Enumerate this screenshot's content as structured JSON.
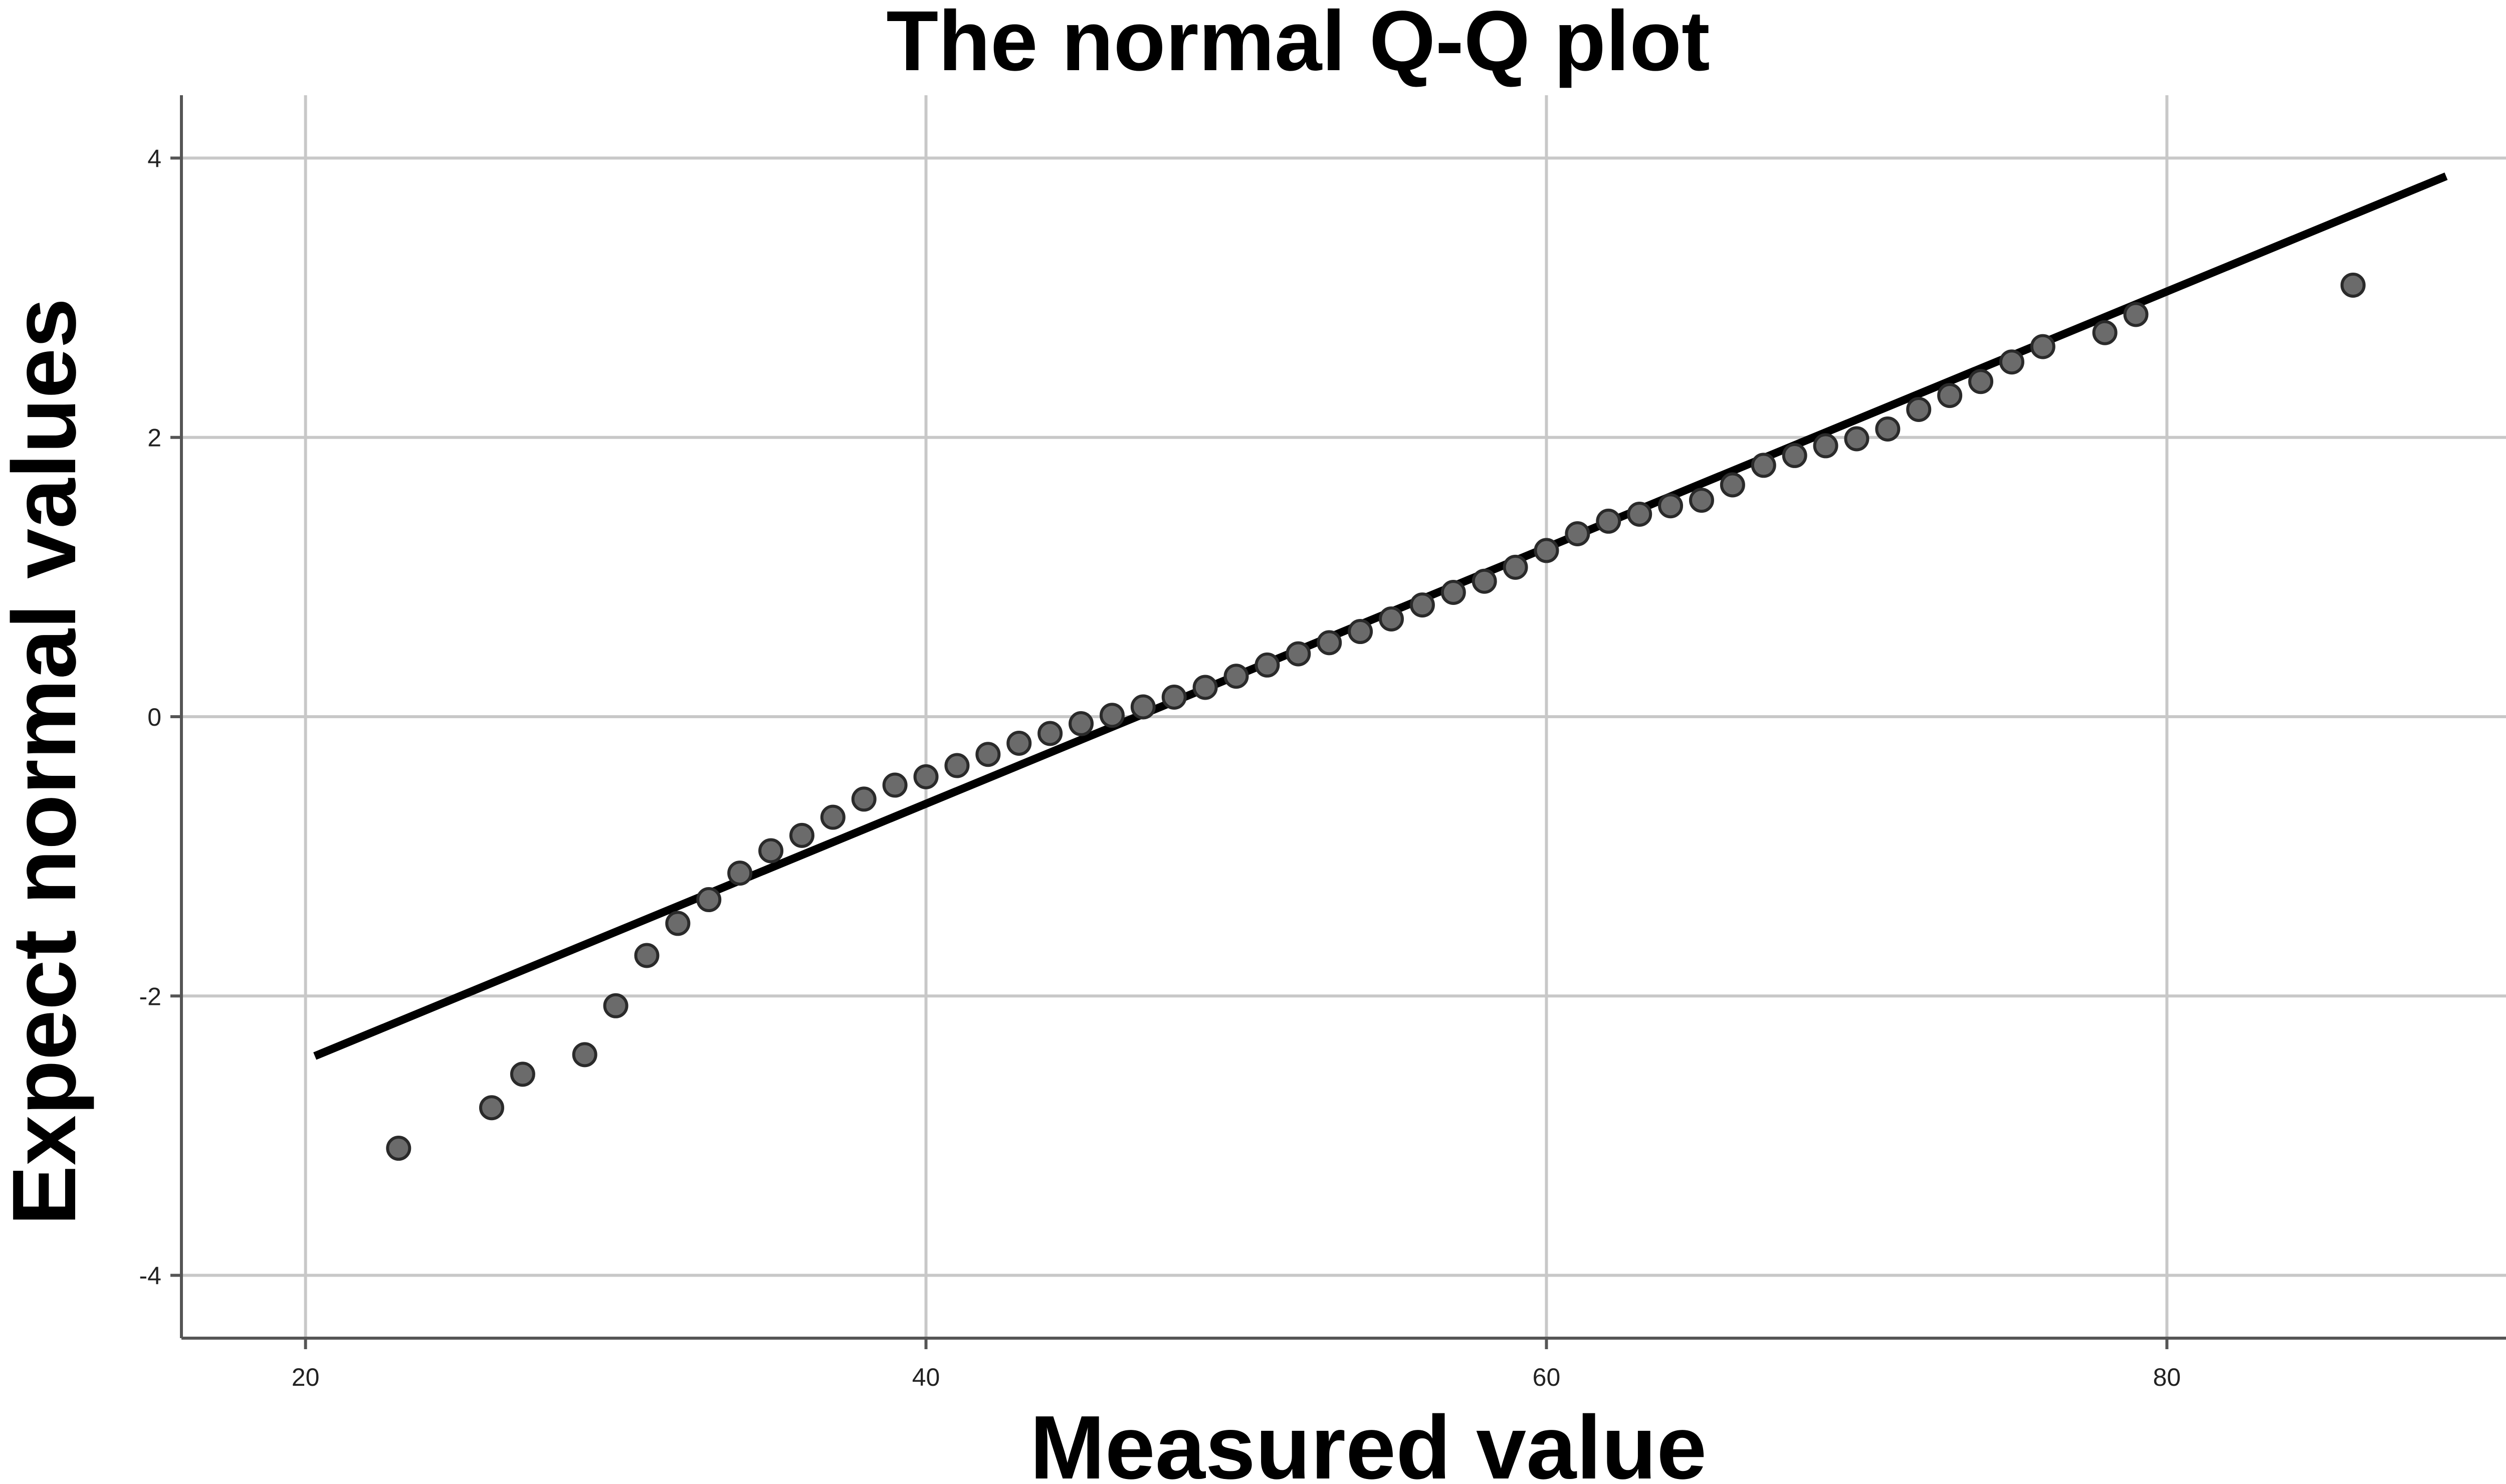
{
  "chart_data": {
    "type": "scatter",
    "title": "The normal Q-Q plot",
    "xlabel": "Measured value",
    "ylabel": "Expect normal values",
    "xlim": [
      16,
      94
    ],
    "ylim": [
      -4.45,
      4.45
    ],
    "xticks": [
      20,
      40,
      60,
      80
    ],
    "yticks": [
      4,
      2,
      0,
      -2,
      -4
    ],
    "grid": true,
    "reference_line": {
      "x": [
        20.3,
        89
      ],
      "y": [
        -2.43,
        3.87
      ]
    },
    "points": {
      "x": [
        23,
        26,
        27,
        29,
        30,
        31,
        32,
        33,
        34,
        35,
        36,
        37,
        38,
        39,
        40,
        41,
        42,
        43,
        44,
        45,
        46,
        47,
        48,
        49,
        50,
        51,
        52,
        53,
        54,
        55,
        56,
        57,
        58,
        59,
        60,
        61,
        62,
        63,
        64,
        65,
        66,
        67,
        68,
        69,
        70,
        71,
        72,
        73,
        74,
        75,
        76,
        78,
        79,
        86
      ],
      "y": [
        -3.09,
        -2.8,
        -2.56,
        -2.42,
        -2.07,
        -1.71,
        -1.48,
        -1.31,
        -1.12,
        -0.96,
        -0.85,
        -0.72,
        -0.59,
        -0.49,
        -0.43,
        -0.35,
        -0.27,
        -0.19,
        -0.12,
        -0.05,
        0.01,
        0.07,
        0.14,
        0.21,
        0.29,
        0.37,
        0.45,
        0.53,
        0.61,
        0.7,
        0.8,
        0.89,
        0.97,
        1.07,
        1.19,
        1.31,
        1.4,
        1.45,
        1.51,
        1.55,
        1.66,
        1.8,
        1.87,
        1.94,
        1.99,
        2.06,
        2.2,
        2.3,
        2.4,
        2.54,
        2.65,
        2.75,
        2.88,
        3.09
      ]
    }
  }
}
